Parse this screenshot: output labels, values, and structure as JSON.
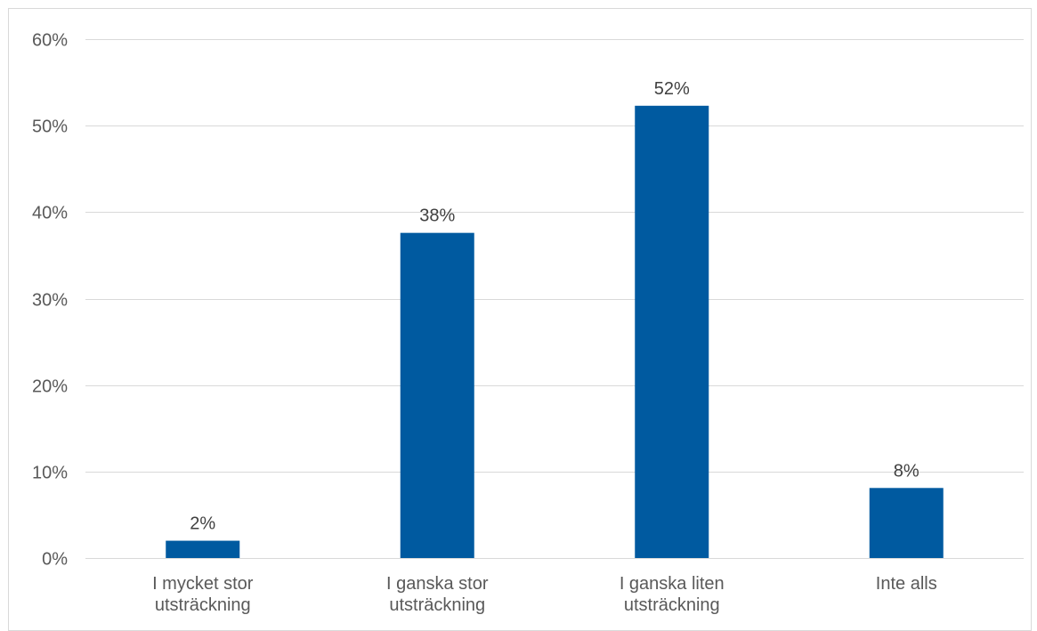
{
  "chart_data": {
    "type": "bar",
    "categories": [
      [
        "I mycket stor",
        "utsträckning"
      ],
      [
        "I ganska stor",
        "utsträckning"
      ],
      [
        "I ganska liten",
        "utsträckning"
      ],
      [
        "Inte alls"
      ]
    ],
    "values": [
      2,
      37.6,
      52.3,
      8.1
    ],
    "data_labels": [
      "2%",
      "38%",
      "52%",
      "8%"
    ],
    "title": "",
    "xlabel": "",
    "ylabel": "",
    "ylim": [
      0,
      60
    ],
    "y_ticks": [
      {
        "value": 0,
        "label": "0%"
      },
      {
        "value": 10,
        "label": "10%"
      },
      {
        "value": 20,
        "label": "20%"
      },
      {
        "value": 30,
        "label": "30%"
      },
      {
        "value": 40,
        "label": "40%"
      },
      {
        "value": 50,
        "label": "50%"
      },
      {
        "value": 60,
        "label": "60%"
      }
    ],
    "grid": true,
    "legend": "none",
    "bar_color": "#005AA0",
    "grid_color": "#d9d9d9"
  }
}
